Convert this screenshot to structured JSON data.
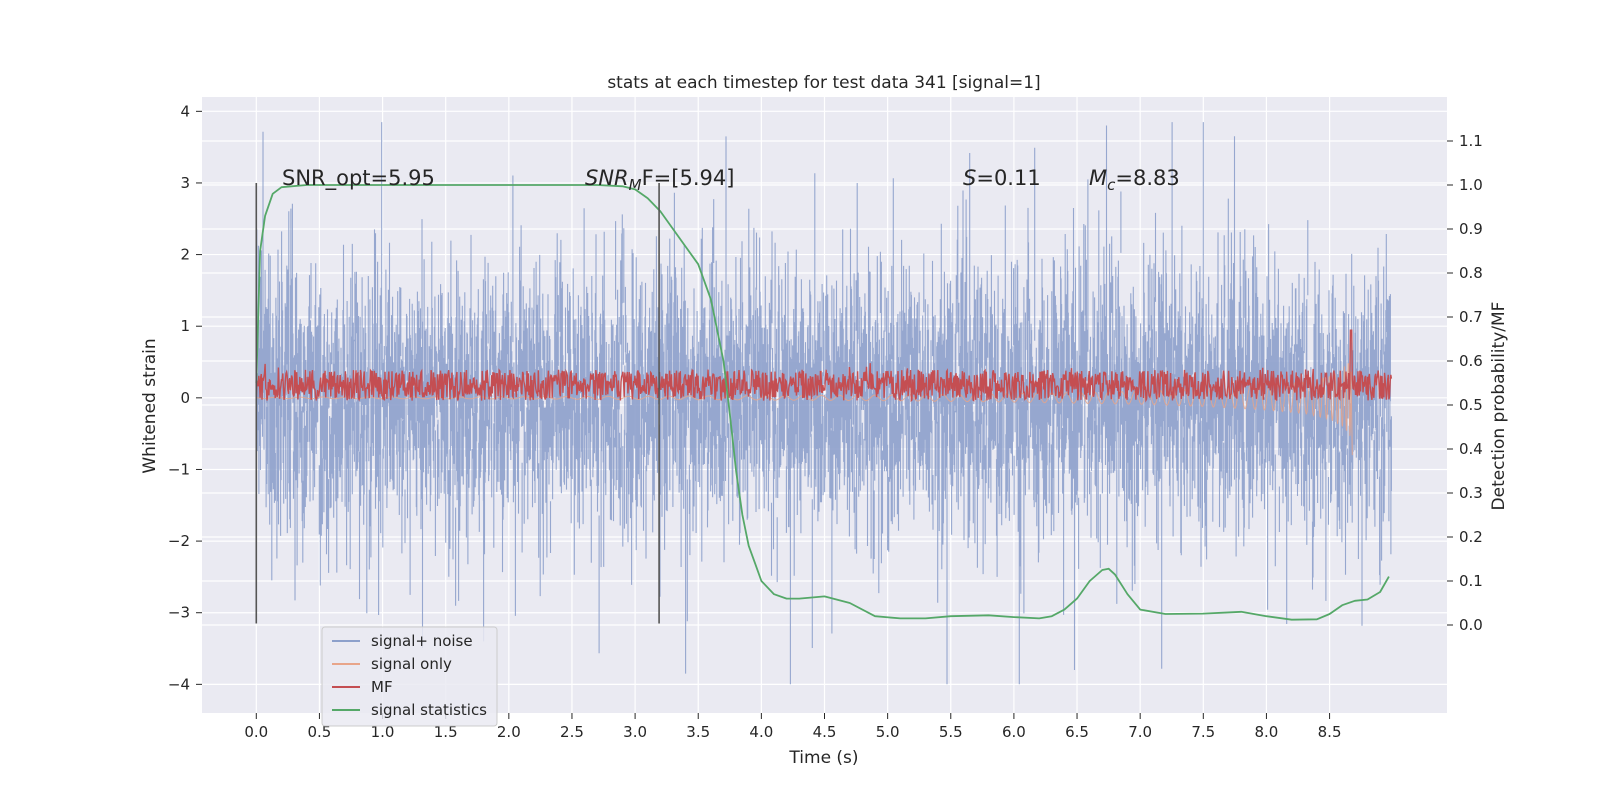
{
  "chart_data": {
    "type": "line",
    "title": "stats at each timestep for test data 341 [signal=1]",
    "xlabel": "Time (s)",
    "ylabel": "Whitened strain",
    "y2label": "Detection probability/MF",
    "xlim": [
      -0.43,
      9.43
    ],
    "ylim": [
      -4.4,
      4.2
    ],
    "y2lim": [
      -0.2,
      1.2
    ],
    "x_ticks": [
      "0.0",
      "0.5",
      "1.0",
      "1.5",
      "2.0",
      "2.5",
      "3.0",
      "3.5",
      "4.0",
      "4.5",
      "5.0",
      "5.5",
      "6.0",
      "6.5",
      "7.0",
      "7.5",
      "8.0",
      "8.5"
    ],
    "y_ticks": [
      "−4",
      "−3",
      "−2",
      "−1",
      "0",
      "1",
      "2",
      "3",
      "4"
    ],
    "y2_ticks": [
      "0.0",
      "0.1",
      "0.2",
      "0.3",
      "0.4",
      "0.5",
      "0.6",
      "0.7",
      "0.8",
      "0.9",
      "1.0",
      "1.1"
    ],
    "vertical_markers": [
      0.0,
      3.19
    ],
    "annotations": {
      "snr_opt": "SNR_opt=5.95",
      "snr_mf_main": "SNR",
      "snr_mf_sub": "M",
      "snr_mf_tail": "F=[5.94]",
      "s_sym": "S",
      "s_val": "=0.11",
      "mc_sym": "M",
      "mc_sub": "c",
      "mc_val": "=8.83"
    },
    "legend": {
      "position": "lower-left",
      "entries": [
        "signal+ noise",
        "signal only",
        "MF",
        "signal statistics"
      ]
    },
    "series": [
      {
        "name": "signal+ noise",
        "axis": "left",
        "color": "#8da0cb",
        "style": "dense noise",
        "x_range": [
          0.0,
          8.99
        ],
        "typical_range": [
          -2.6,
          2.6
        ],
        "extremes": [
          -4.0,
          3.85
        ]
      },
      {
        "name": "signal only",
        "axis": "left",
        "color": "#e8a58a",
        "style": "chirp",
        "x": [
          0.0,
          2.0,
          4.0,
          5.0,
          6.0,
          7.0,
          7.5,
          8.0,
          8.3,
          8.5,
          8.6,
          8.67,
          8.68
        ],
        "envelope": [
          0.01,
          0.015,
          0.03,
          0.04,
          0.06,
          0.09,
          0.12,
          0.17,
          0.22,
          0.3,
          0.4,
          0.55,
          0.0
        ]
      },
      {
        "name": "MF",
        "axis": "right",
        "color": "#c44e52",
        "style": "noisy line",
        "x_range": [
          0.0,
          8.99
        ],
        "typical_range": [
          0.51,
          0.58
        ],
        "peak": {
          "x": 8.67,
          "y": 0.67
        }
      },
      {
        "name": "signal statistics",
        "axis": "right",
        "color": "#55a868",
        "x": [
          0.0,
          0.03,
          0.07,
          0.13,
          0.2,
          0.4,
          1.0,
          2.0,
          2.7,
          2.9,
          3.0,
          3.1,
          3.2,
          3.3,
          3.4,
          3.5,
          3.6,
          3.7,
          3.75,
          3.8,
          3.85,
          3.9,
          3.95,
          4.0,
          4.1,
          4.2,
          4.3,
          4.5,
          4.7,
          4.9,
          5.1,
          5.3,
          5.5,
          5.8,
          6.0,
          6.2,
          6.3,
          6.4,
          6.5,
          6.6,
          6.7,
          6.75,
          6.8,
          6.9,
          7.0,
          7.2,
          7.5,
          7.8,
          8.0,
          8.2,
          8.4,
          8.5,
          8.6,
          8.7,
          8.8,
          8.9,
          8.97
        ],
        "y": [
          0.55,
          0.85,
          0.93,
          0.98,
          0.995,
          1.0,
          1.0,
          1.0,
          1.0,
          0.997,
          0.99,
          0.97,
          0.94,
          0.9,
          0.86,
          0.82,
          0.74,
          0.6,
          0.48,
          0.35,
          0.25,
          0.18,
          0.14,
          0.1,
          0.07,
          0.06,
          0.06,
          0.065,
          0.05,
          0.02,
          0.015,
          0.015,
          0.02,
          0.022,
          0.018,
          0.015,
          0.02,
          0.035,
          0.06,
          0.1,
          0.125,
          0.128,
          0.115,
          0.07,
          0.035,
          0.025,
          0.026,
          0.03,
          0.02,
          0.012,
          0.013,
          0.025,
          0.045,
          0.055,
          0.058,
          0.075,
          0.11
        ]
      }
    ]
  }
}
